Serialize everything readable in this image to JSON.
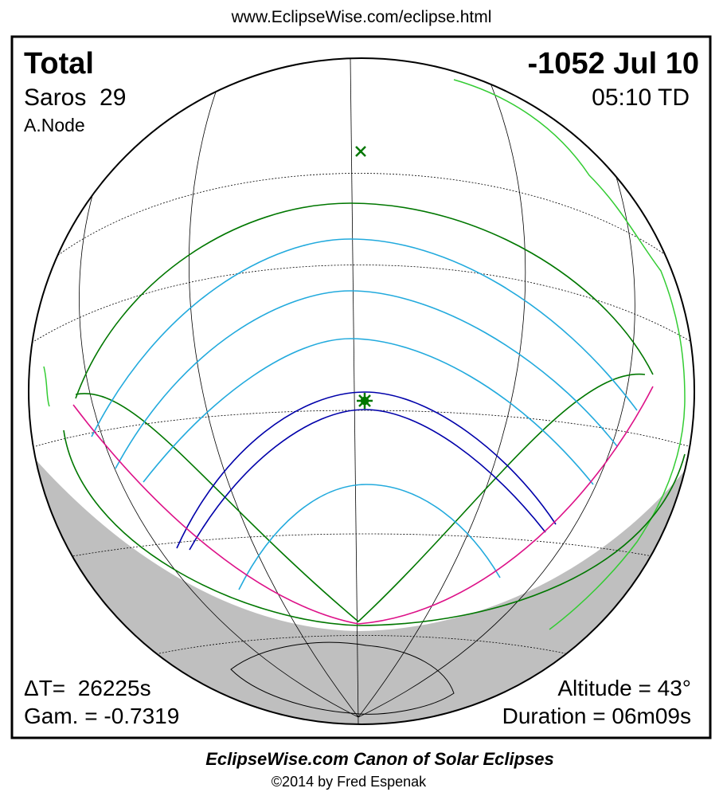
{
  "header": {
    "url": "www.EclipseWise.com/eclipse.html"
  },
  "panel": {
    "eclipse_type": "Total",
    "saros": "Saros  29",
    "node": "A.Node",
    "date": "-1052 Jul 10",
    "time": "05:10 TD",
    "delta_t": "ΔT=  26225s",
    "gamma": "Gam. = -0.7319",
    "altitude": "Altitude = 43°",
    "duration": "Duration = 06m09s"
  },
  "footer": {
    "title": "EclipseWise.com Canon of Solar Eclipses",
    "credit": "©2014 by Fred Espenak"
  }
}
